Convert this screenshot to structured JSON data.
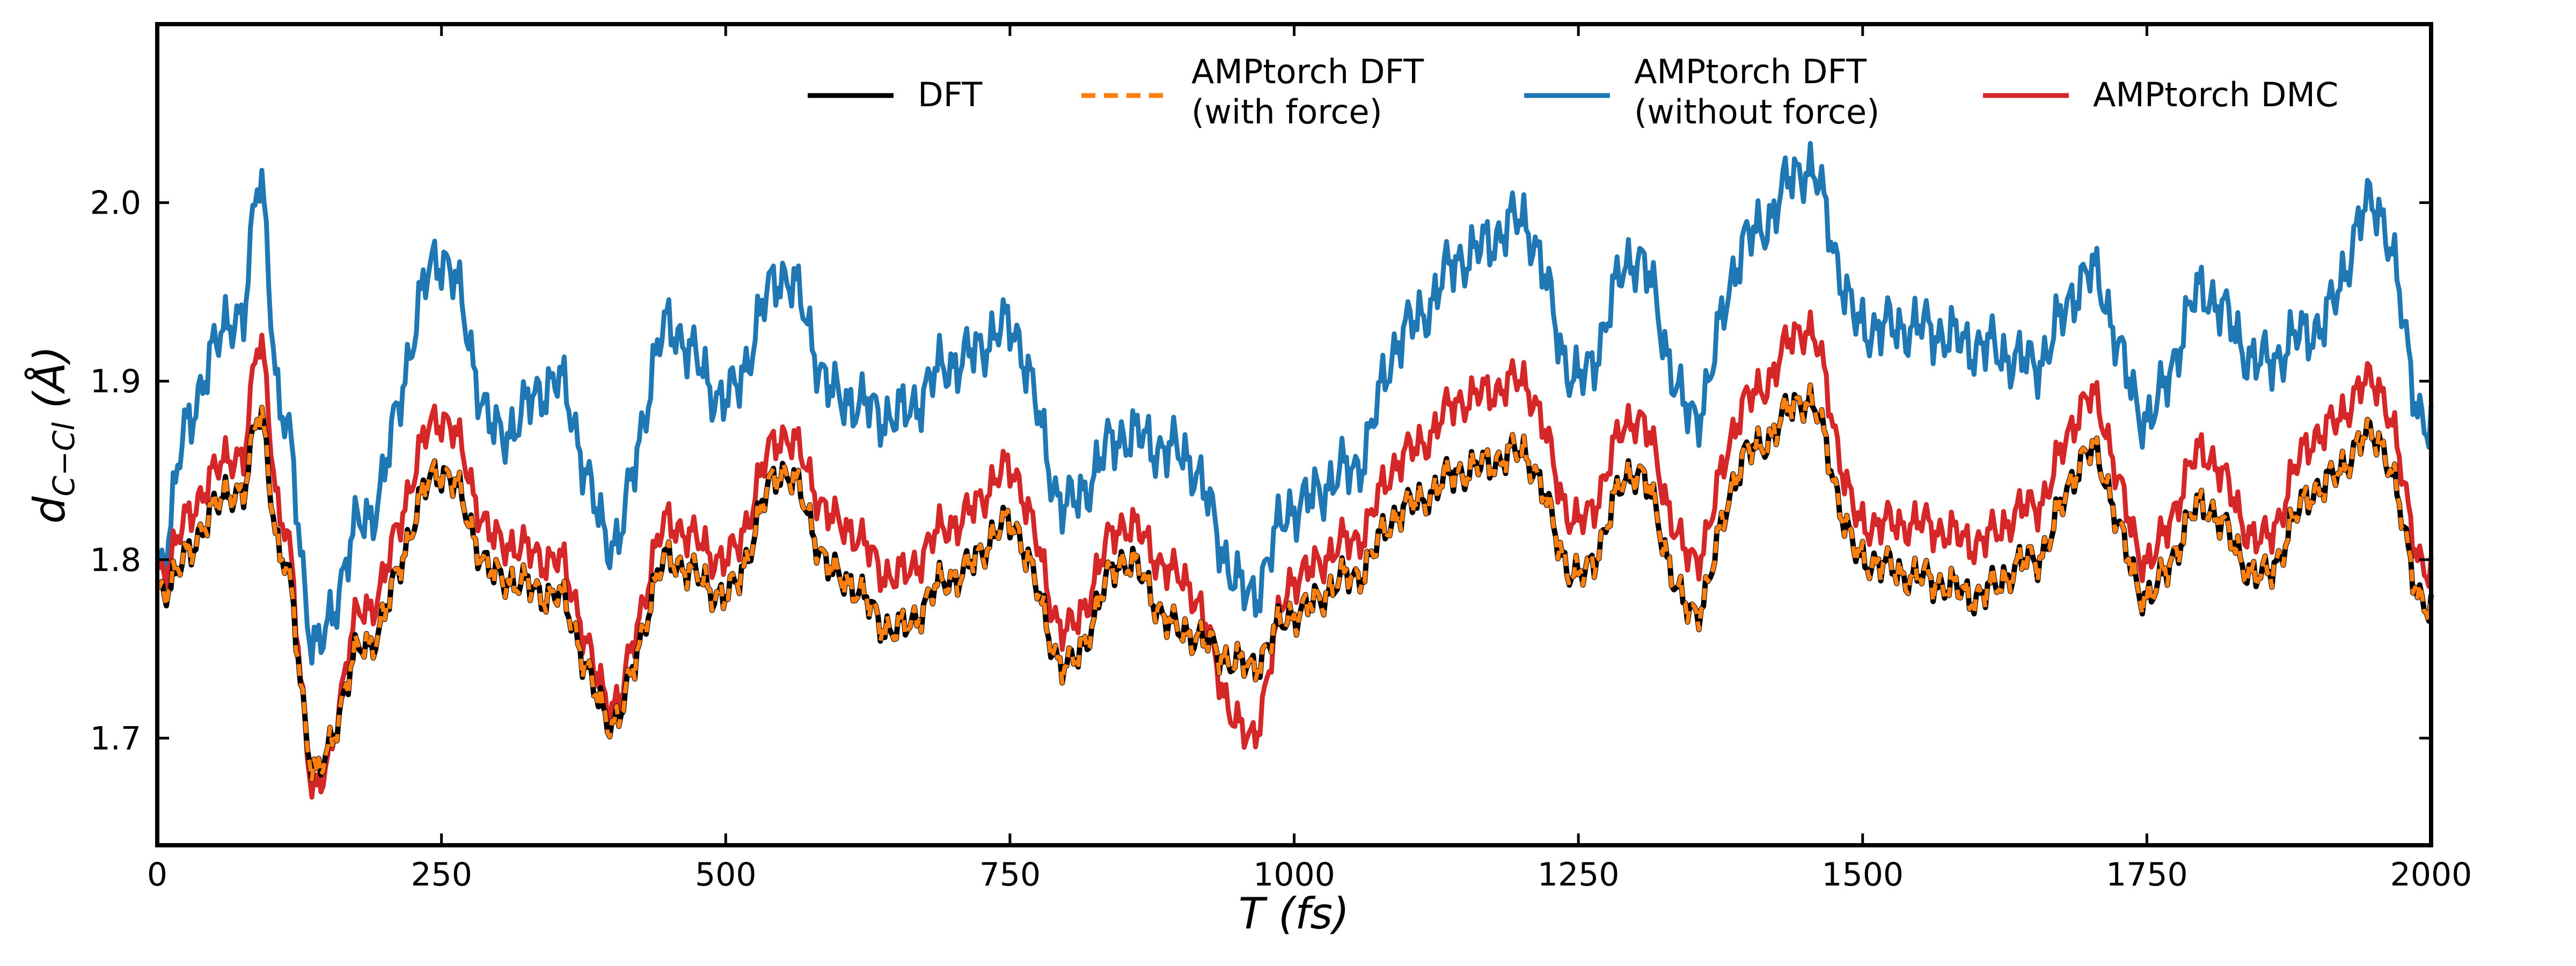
{
  "chart_data": {
    "type": "line",
    "title": "",
    "xlabel": "T (fs)",
    "ylabel": "d_{C-Cl} (Å)",
    "xlim": [
      0,
      2000
    ],
    "ylim": [
      1.64,
      2.1
    ],
    "grid": false,
    "legend_position": "top",
    "x_ticks": [
      "0",
      "250",
      "500",
      "750",
      "1000",
      "1250",
      "1500",
      "1750",
      "2000"
    ],
    "y_ticks": [
      "1.7",
      "1.8",
      "1.9",
      "2.0"
    ],
    "legend": [
      {
        "line1": "DFT",
        "line2": ""
      },
      {
        "line1": "AMPtorch DFT",
        "line2": "(with force)"
      },
      {
        "line1": "AMPtorch DFT",
        "line2": "(without force)"
      },
      {
        "line1": "AMPtorch DMC",
        "line2": ""
      }
    ],
    "colors": {
      "dft": "#000000",
      "amp_with_force": "#ff7f0e",
      "amp_without_force": "#1f77b4",
      "amp_dmc": "#d62728"
    },
    "series_key_x": [
      0,
      25,
      50,
      75,
      90,
      110,
      140,
      180,
      250,
      300,
      350,
      400,
      450,
      500,
      550,
      600,
      650,
      700,
      750,
      800,
      850,
      900,
      960,
      1000,
      1050,
      1100,
      1150,
      1200,
      1250,
      1300,
      1350,
      1400,
      1450,
      1500,
      1550,
      1600,
      1650,
      1700,
      1750,
      1800,
      1850,
      1900,
      1950,
      2000
    ],
    "series": [
      {
        "key": "dft",
        "values": [
          1.78,
          1.8,
          1.83,
          1.84,
          1.88,
          1.8,
          1.68,
          1.75,
          1.85,
          1.79,
          1.78,
          1.71,
          1.8,
          1.78,
          1.85,
          1.79,
          1.76,
          1.79,
          1.82,
          1.74,
          1.8,
          1.76,
          1.74,
          1.77,
          1.79,
          1.83,
          1.85,
          1.86,
          1.79,
          1.85,
          1.77,
          1.86,
          1.89,
          1.8,
          1.79,
          1.78,
          1.8,
          1.86,
          1.78,
          1.83,
          1.79,
          1.84,
          1.87,
          1.77
        ]
      },
      {
        "key": "amp_with_force",
        "values": [
          1.78,
          1.8,
          1.83,
          1.84,
          1.88,
          1.8,
          1.68,
          1.75,
          1.85,
          1.79,
          1.78,
          1.71,
          1.8,
          1.78,
          1.85,
          1.79,
          1.76,
          1.79,
          1.82,
          1.74,
          1.8,
          1.76,
          1.74,
          1.77,
          1.79,
          1.83,
          1.85,
          1.86,
          1.79,
          1.85,
          1.77,
          1.86,
          1.89,
          1.8,
          1.79,
          1.78,
          1.8,
          1.86,
          1.78,
          1.83,
          1.79,
          1.84,
          1.87,
          1.77
        ]
      },
      {
        "key": "amp_without_force",
        "values": [
          1.79,
          1.87,
          1.92,
          1.94,
          2.01,
          1.88,
          1.75,
          1.82,
          1.97,
          1.87,
          1.9,
          1.81,
          1.93,
          1.89,
          1.96,
          1.89,
          1.88,
          1.91,
          1.93,
          1.83,
          1.87,
          1.86,
          1.78,
          1.83,
          1.85,
          1.93,
          1.97,
          1.99,
          1.9,
          1.97,
          1.88,
          1.98,
          2.02,
          1.93,
          1.93,
          1.92,
          1.91,
          1.96,
          1.88,
          1.95,
          1.91,
          1.93,
          2.0,
          1.87
        ]
      },
      {
        "key": "amp_dmc",
        "values": [
          1.79,
          1.82,
          1.85,
          1.86,
          1.92,
          1.82,
          1.67,
          1.77,
          1.88,
          1.81,
          1.8,
          1.72,
          1.82,
          1.8,
          1.87,
          1.82,
          1.79,
          1.82,
          1.85,
          1.76,
          1.82,
          1.79,
          1.7,
          1.79,
          1.81,
          1.86,
          1.89,
          1.9,
          1.82,
          1.88,
          1.8,
          1.89,
          1.93,
          1.82,
          1.82,
          1.81,
          1.83,
          1.89,
          1.8,
          1.86,
          1.81,
          1.87,
          1.9,
          1.79
        ]
      }
    ]
  }
}
